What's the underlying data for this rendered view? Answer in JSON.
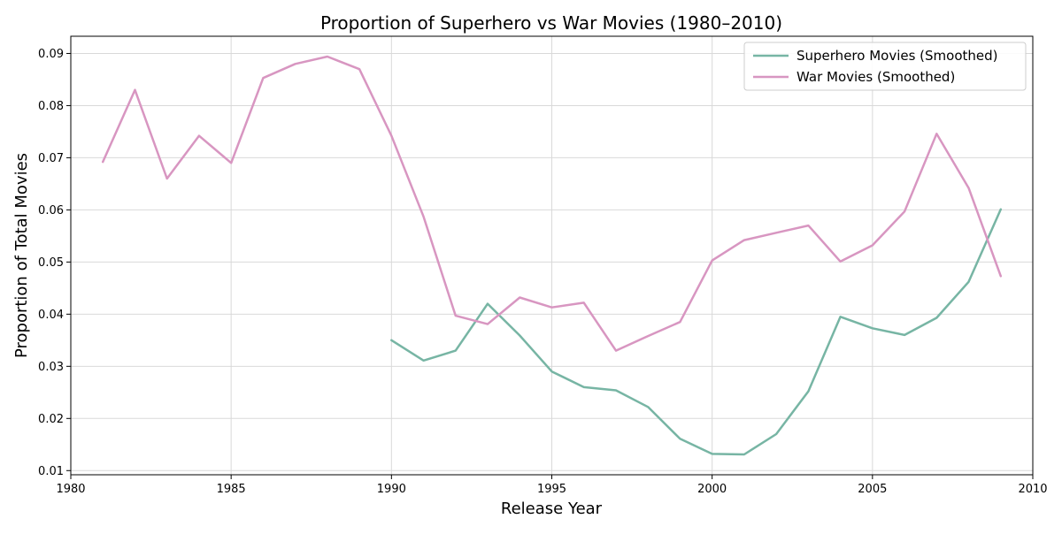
{
  "chart_data": {
    "type": "line",
    "title": "Proportion of Superhero vs War Movies (1980–2010)",
    "xlabel": "Release Year",
    "ylabel": "Proportion of Total Movies",
    "xlim": [
      1980,
      2010
    ],
    "ylim": [
      0.0092,
      0.0933
    ],
    "x_ticks": [
      1980,
      1985,
      1990,
      1995,
      2000,
      2005,
      2010
    ],
    "y_ticks": [
      0.01,
      0.02,
      0.03,
      0.04,
      0.05,
      0.06,
      0.07,
      0.08,
      0.09
    ],
    "y_tick_labels": [
      "0.01",
      "0.02",
      "0.03",
      "0.04",
      "0.05",
      "0.06",
      "0.07",
      "0.08",
      "0.09"
    ],
    "grid": true,
    "legend_position": "top-right",
    "series": [
      {
        "name": "Superhero Movies (Smoothed)",
        "color": "#77b5a4",
        "x": [
          1990,
          1991,
          1992,
          1993,
          1994,
          1995,
          1996,
          1997,
          1998,
          1999,
          2000,
          2001,
          2002,
          2003,
          2004,
          2005,
          2006,
          2007,
          2008,
          2009
        ],
        "y": [
          0.035,
          0.0311,
          0.033,
          0.042,
          0.0359,
          0.029,
          0.026,
          0.0254,
          0.0222,
          0.0161,
          0.0132,
          0.0131,
          0.017,
          0.0252,
          0.0395,
          0.0373,
          0.036,
          0.0393,
          0.0462,
          0.0601
        ]
      },
      {
        "name": "War Movies (Smoothed)",
        "color": "#d896c1",
        "x": [
          1981,
          1982,
          1983,
          1984,
          1985,
          1986,
          1987,
          1988,
          1989,
          1990,
          1991,
          1992,
          1993,
          1994,
          1995,
          1996,
          1997,
          1998,
          1999,
          2000,
          2001,
          2002,
          2003,
          2004,
          2005,
          2006,
          2007,
          2008,
          2009
        ],
        "y": [
          0.0692,
          0.083,
          0.066,
          0.0742,
          0.069,
          0.0853,
          0.088,
          0.0894,
          0.087,
          0.0742,
          0.0587,
          0.0397,
          0.0381,
          0.0432,
          0.0413,
          0.0422,
          0.033,
          0.0358,
          0.0385,
          0.0503,
          0.0542,
          0.0556,
          0.057,
          0.0501,
          0.0532,
          0.0597,
          0.0746,
          0.0642,
          0.0473
        ]
      }
    ]
  }
}
